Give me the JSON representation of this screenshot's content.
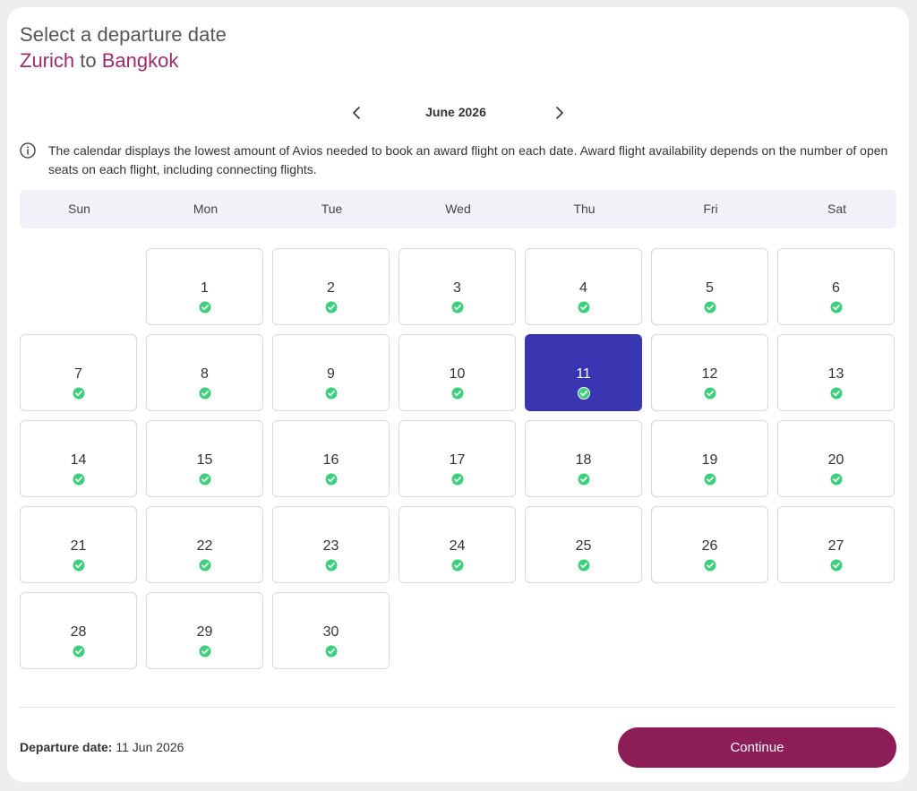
{
  "header": {
    "title": "Select a departure date",
    "origin": "Zurich",
    "connector": "to",
    "destination": "Bangkok"
  },
  "month_nav": {
    "label": "June 2026",
    "prev_icon": "chevron-left-icon",
    "next_icon": "chevron-right-icon"
  },
  "info": {
    "icon": "info-icon",
    "text": "The calendar displays the lowest amount of Avios needed to book an award flight on each date. Award flight availability depends on the number of open seats on each flight, including connecting flights."
  },
  "weekdays": [
    "Sun",
    "Mon",
    "Tue",
    "Wed",
    "Thu",
    "Fri",
    "Sat"
  ],
  "calendar": {
    "first_weekday_index": 1,
    "days": [
      "1",
      "2",
      "3",
      "4",
      "5",
      "6",
      "7",
      "8",
      "9",
      "10",
      "11",
      "12",
      "13",
      "14",
      "15",
      "16",
      "17",
      "18",
      "19",
      "20",
      "21",
      "22",
      "23",
      "24",
      "25",
      "26",
      "27",
      "28",
      "29",
      "30"
    ],
    "selected_day": "11",
    "availability_icon": "check-circle-icon"
  },
  "footer": {
    "departure_label": "Departure date:",
    "departure_value": "11 Jun 2026",
    "continue_label": "Continue"
  },
  "colors": {
    "accent_plum": "#8c1d57",
    "city_text": "#9b2d6a",
    "selected_day": "#3a35b0",
    "available_green": "#3ecf7c"
  }
}
